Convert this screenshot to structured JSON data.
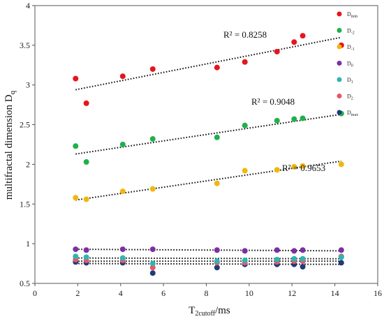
{
  "chart_data": {
    "type": "scatter",
    "xlabel": {
      "main": "T",
      "sub": "2cutoff",
      "tail": "/ms"
    },
    "ylabel": {
      "main": "multifractal dimension D",
      "sub": "q"
    },
    "xlim": [
      0,
      16
    ],
    "ylim": [
      0.5,
      4
    ],
    "x_ticks": [
      "0",
      "2",
      "4",
      "6",
      "8",
      "10",
      "12",
      "14",
      "16"
    ],
    "y_ticks": [
      "0.5",
      "1",
      "1.5",
      "2",
      "2.5",
      "3",
      "3.5",
      "4"
    ],
    "grid": false,
    "legend_position": "right",
    "x": [
      1.9,
      2.4,
      4.1,
      5.5,
      8.5,
      9.8,
      11.3,
      12.1,
      12.5,
      14.3
    ],
    "series": [
      {
        "name": "D",
        "name_sub": "min",
        "color": "#e8141c",
        "values": [
          3.08,
          2.77,
          3.11,
          3.2,
          3.22,
          3.29,
          3.42,
          3.54,
          3.62,
          3.5
        ],
        "trend": [
          2.94,
          3.6
        ],
        "r2": "R² = 0.8258"
      },
      {
        "name": "D",
        "name_sub": "-2",
        "color": "#20b04b",
        "values": [
          2.23,
          2.03,
          2.25,
          2.32,
          2.34,
          2.49,
          2.55,
          2.57,
          2.58,
          2.64
        ],
        "trend": [
          2.13,
          2.63
        ],
        "r2": "R² = 0.9048"
      },
      {
        "name": "D",
        "name_sub": "-1",
        "color": "#f1b70f",
        "values": [
          1.58,
          1.56,
          1.66,
          1.69,
          1.76,
          1.92,
          1.93,
          1.97,
          1.98,
          2.0
        ],
        "trend": [
          1.55,
          2.04
        ],
        "r2": "R² = 0.9653"
      },
      {
        "name": "D",
        "name_sub": "0",
        "color": "#7b2fa4",
        "values": [
          0.93,
          0.92,
          0.93,
          0.93,
          0.92,
          0.91,
          0.92,
          0.91,
          0.92,
          0.92
        ],
        "trend": [
          0.93,
          0.91
        ]
      },
      {
        "name": "D",
        "name_sub": "1",
        "color": "#2fb5b0",
        "values": [
          0.84,
          0.83,
          0.82,
          0.75,
          0.78,
          0.79,
          0.8,
          0.81,
          0.81,
          0.83
        ],
        "trend": [
          0.82,
          0.81
        ]
      },
      {
        "name": "D",
        "name_sub": "2",
        "color": "#e8556a",
        "values": [
          0.8,
          0.79,
          0.79,
          0.7,
          0.76,
          0.76,
          0.77,
          0.78,
          0.78,
          0.84
        ],
        "trend": [
          0.78,
          0.78
        ]
      },
      {
        "name": "D",
        "name_sub": "max",
        "color": "#1f3b7a",
        "values": [
          0.77,
          0.76,
          0.76,
          0.63,
          0.7,
          0.74,
          0.74,
          0.74,
          0.71,
          0.76
        ],
        "trend": [
          0.75,
          0.74
        ]
      }
    ]
  }
}
